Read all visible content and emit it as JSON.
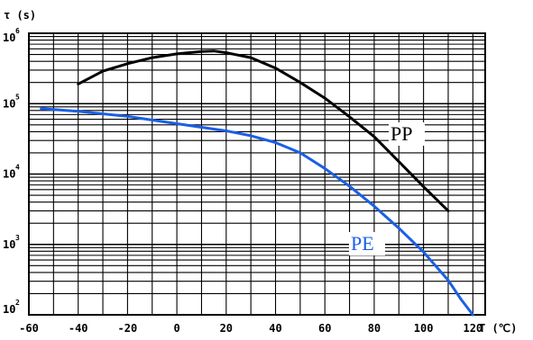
{
  "chart_data": {
    "type": "line",
    "title": "",
    "ylabel": "τ (s)",
    "xlabel": "T (℃)",
    "y_scale": "log",
    "ylim": [
      100,
      1000000
    ],
    "xlim": [
      -60,
      125
    ],
    "grid": true,
    "x_ticks": [
      -60,
      -40,
      -20,
      0,
      20,
      40,
      60,
      80,
      100,
      120
    ],
    "y_ticks": [
      {
        "base": "10",
        "exp": "6",
        "value": 1000000
      },
      {
        "base": "10",
        "exp": "5",
        "value": 100000
      },
      {
        "base": "10",
        "exp": "4",
        "value": 10000
      },
      {
        "base": "10",
        "exp": "3",
        "value": 1000
      },
      {
        "base": "10",
        "exp": "2",
        "value": 100
      }
    ],
    "series": [
      {
        "name": "PP",
        "color": "#000000",
        "x": [
          -40,
          -30,
          -20,
          -10,
          0,
          10,
          15,
          20,
          30,
          40,
          50,
          60,
          70,
          80,
          90,
          100,
          110
        ],
        "y": [
          190000,
          290000,
          370000,
          450000,
          510000,
          550000,
          560000,
          530000,
          450000,
          320000,
          200000,
          120000,
          65000,
          34000,
          15000,
          6600,
          3000
        ]
      },
      {
        "name": "PE",
        "color": "#1a5fe6",
        "x": [
          -55,
          -40,
          -20,
          0,
          20,
          30,
          40,
          50,
          60,
          70,
          80,
          90,
          100,
          110,
          115,
          120
        ],
        "y": [
          85000,
          78000,
          66000,
          52000,
          41000,
          35000,
          28000,
          20000,
          12000,
          6700,
          3500,
          1700,
          780,
          310,
          170,
          100
        ]
      }
    ]
  }
}
